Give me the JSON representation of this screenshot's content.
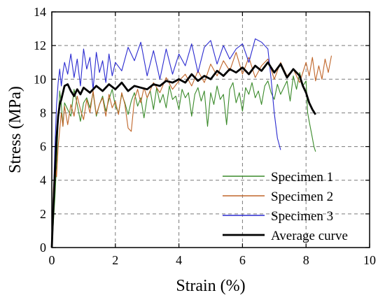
{
  "chart_data": {
    "type": "line",
    "title": "",
    "xlabel": "Strain (%)",
    "ylabel": "Stress (MPa)",
    "xlim": [
      0,
      10
    ],
    "ylim": [
      0,
      14
    ],
    "xticks": [
      0,
      2,
      4,
      6,
      8,
      10
    ],
    "yticks": [
      0,
      2,
      4,
      6,
      8,
      10,
      12,
      14
    ],
    "xtick_labels": [
      "0",
      "2",
      "4",
      "6",
      "8",
      "10"
    ],
    "ytick_labels": [
      "0",
      "2",
      "4",
      "6",
      "8",
      "10",
      "12",
      "14"
    ],
    "grid": true,
    "legend_position": "bottom-right",
    "series": [
      {
        "name": "Specimen 1",
        "color": "#3a8a2a",
        "x": [
          0,
          0.05,
          0.1,
          0.15,
          0.2,
          0.25,
          0.3,
          0.35,
          0.4,
          0.5,
          0.6,
          0.7,
          0.8,
          0.9,
          1.0,
          1.1,
          1.2,
          1.3,
          1.4,
          1.5,
          1.6,
          1.7,
          1.8,
          1.9,
          2.0,
          2.1,
          2.2,
          2.3,
          2.4,
          2.5,
          2.6,
          2.7,
          2.8,
          2.9,
          3.0,
          3.1,
          3.2,
          3.3,
          3.4,
          3.5,
          3.6,
          3.7,
          3.8,
          3.9,
          4.0,
          4.1,
          4.2,
          4.3,
          4.4,
          4.5,
          4.6,
          4.7,
          4.8,
          4.9,
          5.0,
          5.1,
          5.2,
          5.3,
          5.4,
          5.5,
          5.6,
          5.7,
          5.8,
          5.9,
          6.0,
          6.1,
          6.2,
          6.3,
          6.4,
          6.5,
          6.6,
          6.7,
          6.8,
          6.9,
          7.0,
          7.1,
          7.2,
          7.3,
          7.4,
          7.5,
          7.6,
          7.7,
          7.8,
          7.9,
          8.0,
          8.05,
          8.1,
          8.15,
          8.2,
          8.25,
          8.3
        ],
        "y": [
          0,
          1.5,
          3.0,
          5.0,
          7.5,
          9.3,
          8.5,
          7.2,
          8.6,
          8.2,
          7.8,
          9.4,
          8.5,
          7.5,
          8.6,
          8.9,
          8.3,
          9.2,
          7.8,
          8.5,
          9.0,
          8.1,
          8.8,
          9.4,
          8.4,
          8.0,
          9.1,
          8.6,
          7.9,
          8.7,
          9.2,
          8.4,
          8.9,
          7.7,
          8.9,
          9.3,
          8.2,
          9.5,
          8.6,
          9.1,
          8.3,
          9.6,
          8.8,
          9.0,
          8.2,
          9.4,
          8.9,
          9.2,
          7.8,
          9.1,
          9.5,
          8.7,
          9.3,
          7.2,
          9.2,
          8.5,
          9.6,
          8.8,
          9.1,
          7.3,
          9.4,
          9.8,
          8.6,
          9.2,
          8.1,
          9.5,
          9.1,
          9.8,
          8.9,
          9.3,
          8.5,
          9.6,
          9.9,
          9.2,
          8.8,
          9.7,
          9.1,
          9.5,
          9.9,
          8.7,
          10.2,
          9.4,
          10.4,
          9.6,
          9.9,
          8.0,
          7.5,
          7.0,
          6.5,
          6.0,
          5.7
        ]
      },
      {
        "name": "Specimen 2",
        "color": "#c0662a",
        "x": [
          0,
          0.05,
          0.1,
          0.15,
          0.2,
          0.25,
          0.3,
          0.35,
          0.4,
          0.5,
          0.6,
          0.7,
          0.8,
          0.9,
          1.0,
          1.1,
          1.2,
          1.3,
          1.4,
          1.5,
          1.6,
          1.7,
          1.8,
          1.9,
          2.0,
          2.1,
          2.2,
          2.3,
          2.4,
          2.5,
          2.6,
          2.7,
          2.8,
          2.9,
          3.0,
          3.2,
          3.4,
          3.6,
          3.8,
          4.0,
          4.2,
          4.4,
          4.6,
          4.8,
          5.0,
          5.2,
          5.4,
          5.6,
          5.8,
          6.0,
          6.2,
          6.4,
          6.6,
          6.8,
          7.0,
          7.2,
          7.4,
          7.6,
          7.8,
          8.0,
          8.1,
          8.2,
          8.3,
          8.4,
          8.5,
          8.6,
          8.7,
          8.8
        ],
        "y": [
          0,
          3.5,
          5.0,
          4.2,
          6.0,
          7.0,
          8.0,
          7.2,
          8.4,
          7.3,
          8.5,
          7.8,
          9.0,
          8.2,
          7.6,
          8.8,
          8.0,
          9.3,
          7.9,
          8.5,
          8.9,
          7.8,
          9.1,
          8.3,
          8.7,
          7.9,
          9.2,
          8.5,
          7.1,
          6.9,
          8.8,
          9.4,
          8.6,
          9.5,
          8.9,
          9.8,
          9.2,
          10.1,
          9.4,
          9.9,
          10.3,
          9.6,
          10.5,
          9.8,
          10.9,
          10.2,
          11.1,
          10.5,
          11.6,
          10.3,
          11.3,
          10.1,
          10.8,
          11.2,
          10.0,
          11.0,
          10.2,
          10.6,
          9.8,
          11.0,
          10.2,
          11.3,
          9.9,
          10.8,
          10.0,
          11.2,
          10.4,
          11.4
        ]
      },
      {
        "name": "Specimen 3",
        "color": "#2a2ad0",
        "x": [
          0,
          0.05,
          0.1,
          0.15,
          0.2,
          0.25,
          0.3,
          0.35,
          0.4,
          0.5,
          0.6,
          0.7,
          0.8,
          0.9,
          1.0,
          1.1,
          1.2,
          1.3,
          1.4,
          1.5,
          1.6,
          1.7,
          1.8,
          1.9,
          2.0,
          2.2,
          2.4,
          2.6,
          2.8,
          3.0,
          3.2,
          3.4,
          3.6,
          3.8,
          4.0,
          4.2,
          4.4,
          4.6,
          4.8,
          5.0,
          5.2,
          5.4,
          5.6,
          5.8,
          6.0,
          6.2,
          6.4,
          6.6,
          6.8,
          6.9,
          7.0,
          7.1,
          7.2
        ],
        "y": [
          0,
          3.0,
          6.0,
          8.5,
          9.8,
          10.6,
          9.6,
          10.4,
          11.0,
          10.3,
          11.5,
          10.1,
          11.2,
          9.6,
          11.8,
          10.6,
          11.3,
          9.4,
          11.6,
          10.4,
          11.1,
          9.8,
          11.5,
          10.2,
          11.0,
          10.5,
          11.9,
          11.1,
          12.2,
          10.2,
          11.7,
          10.0,
          11.8,
          10.3,
          11.5,
          10.8,
          12.1,
          10.4,
          11.9,
          12.3,
          10.9,
          12.0,
          11.2,
          11.8,
          12.1,
          11.0,
          12.4,
          12.2,
          11.8,
          10.0,
          8.0,
          6.5,
          5.8
        ]
      },
      {
        "name": "Average curve",
        "color": "#000000",
        "x": [
          0,
          0.05,
          0.1,
          0.15,
          0.2,
          0.25,
          0.3,
          0.4,
          0.5,
          0.6,
          0.7,
          0.8,
          0.9,
          1.0,
          1.2,
          1.4,
          1.6,
          1.8,
          2.0,
          2.2,
          2.4,
          2.6,
          2.8,
          3.0,
          3.2,
          3.4,
          3.6,
          3.8,
          4.0,
          4.2,
          4.4,
          4.6,
          4.8,
          5.0,
          5.2,
          5.4,
          5.6,
          5.8,
          6.0,
          6.2,
          6.4,
          6.6,
          6.8,
          7.0,
          7.2,
          7.4,
          7.6,
          7.8,
          7.9,
          8.0,
          8.1,
          8.2,
          8.3
        ],
        "y": [
          0,
          2.5,
          4.5,
          6.5,
          7.8,
          8.5,
          8.8,
          9.6,
          9.7,
          9.3,
          9.0,
          9.4,
          9.1,
          9.5,
          9.2,
          9.6,
          9.3,
          9.7,
          9.4,
          9.8,
          9.3,
          9.6,
          9.5,
          9.4,
          9.7,
          9.6,
          9.9,
          9.8,
          10.0,
          9.8,
          10.3,
          9.9,
          10.2,
          10.0,
          10.5,
          10.2,
          10.6,
          10.4,
          10.7,
          10.3,
          10.8,
          10.5,
          11.0,
          10.4,
          10.9,
          10.1,
          10.6,
          10.2,
          9.6,
          9.2,
          8.6,
          8.2,
          7.9
        ]
      }
    ]
  }
}
